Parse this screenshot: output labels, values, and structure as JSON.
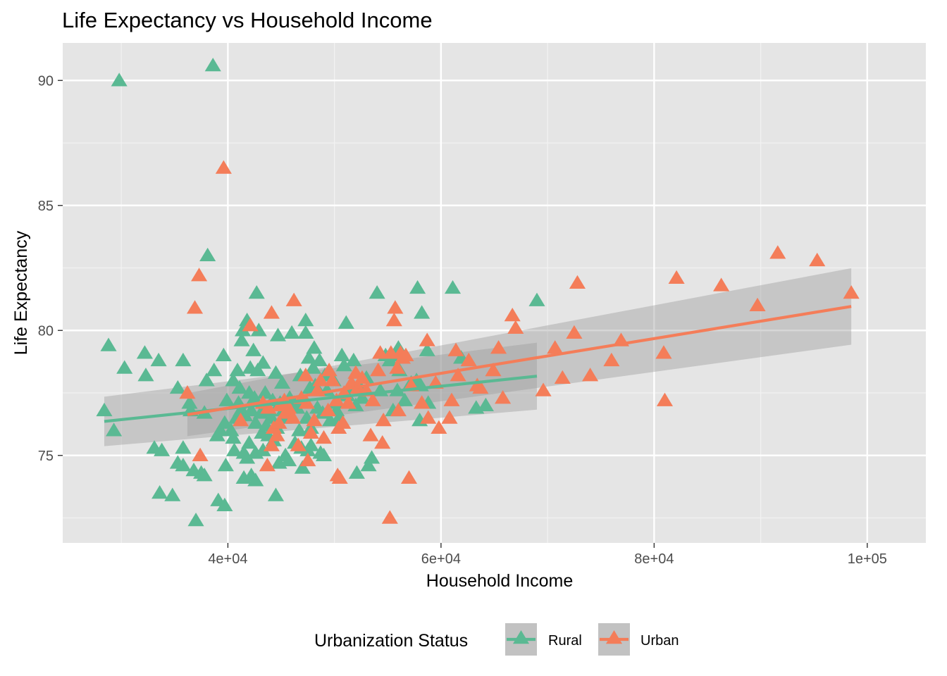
{
  "chart_data": {
    "type": "scatter",
    "title": "Life Expectancy vs Household Income",
    "xlabel": "Household Income",
    "ylabel": "Life Expectancy",
    "xlim": [
      24500,
      105500
    ],
    "ylim": [
      71.5,
      91.5
    ],
    "x_ticks": [
      {
        "value": 40000,
        "label": "4e+04"
      },
      {
        "value": 60000,
        "label": "6e+04"
      },
      {
        "value": 80000,
        "label": "8e+04"
      },
      {
        "value": 100000,
        "label": "1e+05"
      }
    ],
    "x_minor": [
      30000,
      50000,
      70000,
      90000
    ],
    "y_ticks": [
      {
        "value": 75,
        "label": "75"
      },
      {
        "value": 80,
        "label": "80"
      },
      {
        "value": 85,
        "label": "85"
      },
      {
        "value": 90,
        "label": "90"
      }
    ],
    "y_minor": [
      72.5,
      77.5,
      82.5,
      87.5
    ],
    "grid": true,
    "panel_color": "#e5e5e5",
    "legend": {
      "title": "Urbanization Status",
      "position": "bottom"
    },
    "series": [
      {
        "name": "Rural",
        "color": "#5ab993",
        "marker": "triangle",
        "points": [
          [
            28400,
            76.8
          ],
          [
            28800,
            79.4
          ],
          [
            29300,
            76.0
          ],
          [
            29800,
            90.0
          ],
          [
            30300,
            78.5
          ],
          [
            32200,
            79.1
          ],
          [
            32300,
            78.2
          ],
          [
            33100,
            75.3
          ],
          [
            33500,
            78.8
          ],
          [
            33600,
            73.5
          ],
          [
            33800,
            75.2
          ],
          [
            34800,
            73.4
          ],
          [
            35300,
            77.7
          ],
          [
            35300,
            74.7
          ],
          [
            35800,
            78.8
          ],
          [
            35800,
            75.3
          ],
          [
            35800,
            74.6
          ],
          [
            36400,
            77.1
          ],
          [
            36500,
            76.8
          ],
          [
            36800,
            74.4
          ],
          [
            37000,
            72.4
          ],
          [
            37500,
            74.3
          ],
          [
            37800,
            74.2
          ],
          [
            37800,
            76.7
          ],
          [
            38000,
            78.0
          ],
          [
            38100,
            83.0
          ],
          [
            38600,
            90.6
          ],
          [
            38700,
            78.4
          ],
          [
            39000,
            75.8
          ],
          [
            39100,
            73.2
          ],
          [
            39300,
            76.0
          ],
          [
            39600,
            79.0
          ],
          [
            39700,
            76.3
          ],
          [
            39700,
            73.0
          ],
          [
            39800,
            74.6
          ],
          [
            39900,
            77.2
          ],
          [
            40300,
            76.0
          ],
          [
            40500,
            78.0
          ],
          [
            40500,
            75.7
          ],
          [
            40600,
            75.2
          ],
          [
            40800,
            76.5
          ],
          [
            40900,
            78.4
          ],
          [
            41000,
            77.1
          ],
          [
            41100,
            77.7
          ],
          [
            41200,
            76.8
          ],
          [
            41300,
            79.6
          ],
          [
            41400,
            80.0
          ],
          [
            41500,
            75.1
          ],
          [
            41500,
            74.1
          ],
          [
            41600,
            76.6
          ],
          [
            41800,
            80.4
          ],
          [
            41800,
            74.9
          ],
          [
            42000,
            77.5
          ],
          [
            42000,
            75.5
          ],
          [
            42100,
            78.5
          ],
          [
            42200,
            74.2
          ],
          [
            42200,
            76.8
          ],
          [
            42400,
            79.2
          ],
          [
            42500,
            77.3
          ],
          [
            42600,
            76.3
          ],
          [
            42600,
            75.1
          ],
          [
            42600,
            74.0
          ],
          [
            42700,
            81.5
          ],
          [
            42800,
            78.4
          ],
          [
            42900,
            80.0
          ],
          [
            43100,
            76.7
          ],
          [
            43200,
            75.9
          ],
          [
            43300,
            78.7
          ],
          [
            43300,
            75.2
          ],
          [
            43500,
            77.5
          ],
          [
            43600,
            76.2
          ],
          [
            43800,
            75.8
          ],
          [
            43900,
            76.8
          ],
          [
            44100,
            76.5
          ],
          [
            44200,
            77.2
          ],
          [
            44300,
            75.6
          ],
          [
            44500,
            78.3
          ],
          [
            44500,
            73.4
          ],
          [
            44600,
            76.1
          ],
          [
            44700,
            79.8
          ],
          [
            44800,
            74.7
          ],
          [
            44900,
            77.1
          ],
          [
            45100,
            77.9
          ],
          [
            45200,
            76.8
          ],
          [
            45300,
            76.5
          ],
          [
            45400,
            75.0
          ],
          [
            45600,
            76.6
          ],
          [
            45700,
            74.8
          ],
          [
            45800,
            77.3
          ],
          [
            46000,
            79.9
          ],
          [
            46200,
            77.1
          ],
          [
            46300,
            75.5
          ],
          [
            46500,
            76.9
          ],
          [
            46700,
            76.0
          ],
          [
            46800,
            78.2
          ],
          [
            46900,
            75.3
          ],
          [
            47000,
            74.5
          ],
          [
            47200,
            77.1
          ],
          [
            47300,
            80.4
          ],
          [
            47300,
            79.9
          ],
          [
            47400,
            76.5
          ],
          [
            47500,
            75.2
          ],
          [
            47600,
            78.9
          ],
          [
            47700,
            77.7
          ],
          [
            47800,
            76.1
          ],
          [
            47800,
            75.4
          ],
          [
            48000,
            78.5
          ],
          [
            48100,
            79.3
          ],
          [
            48200,
            77.8
          ],
          [
            48400,
            76.9
          ],
          [
            48600,
            78.8
          ],
          [
            48700,
            75.1
          ],
          [
            48900,
            76.7
          ],
          [
            49000,
            75.0
          ],
          [
            49100,
            78.2
          ],
          [
            49300,
            77.6
          ],
          [
            49600,
            76.4
          ],
          [
            49900,
            78.0
          ],
          [
            50100,
            77.1
          ],
          [
            50200,
            76.8
          ],
          [
            50400,
            76.5
          ],
          [
            50700,
            79.0
          ],
          [
            50900,
            78.6
          ],
          [
            51100,
            80.3
          ],
          [
            51200,
            77.4
          ],
          [
            51500,
            77.7
          ],
          [
            51800,
            78.8
          ],
          [
            52000,
            77.0
          ],
          [
            52100,
            74.3
          ],
          [
            52300,
            77.8
          ],
          [
            52600,
            77.3
          ],
          [
            53000,
            78.1
          ],
          [
            53200,
            74.6
          ],
          [
            53500,
            74.9
          ],
          [
            54000,
            81.5
          ],
          [
            54300,
            77.6
          ],
          [
            54800,
            79.0
          ],
          [
            55200,
            78.8
          ],
          [
            55500,
            76.8
          ],
          [
            55800,
            79.0
          ],
          [
            55900,
            77.6
          ],
          [
            56000,
            79.3
          ],
          [
            56100,
            78.4
          ],
          [
            56600,
            77.2
          ],
          [
            57200,
            77.9
          ],
          [
            57700,
            78.0
          ],
          [
            57800,
            81.7
          ],
          [
            58000,
            76.4
          ],
          [
            58100,
            77.8
          ],
          [
            58200,
            80.7
          ],
          [
            58700,
            79.2
          ],
          [
            58800,
            77.1
          ],
          [
            61100,
            81.7
          ],
          [
            61900,
            78.9
          ],
          [
            63300,
            76.9
          ],
          [
            64200,
            77.0
          ],
          [
            69000,
            81.2
          ]
        ]
      },
      {
        "name": "Urban",
        "color": "#f47d59",
        "marker": "triangle",
        "points": [
          [
            36200,
            77.5
          ],
          [
            36900,
            80.9
          ],
          [
            37300,
            82.2
          ],
          [
            37400,
            75.0
          ],
          [
            39600,
            86.5
          ],
          [
            41200,
            76.4
          ],
          [
            42100,
            80.2
          ],
          [
            43300,
            77.1
          ],
          [
            43700,
            74.6
          ],
          [
            43800,
            76.9
          ],
          [
            44100,
            75.4
          ],
          [
            44100,
            80.7
          ],
          [
            44300,
            76.1
          ],
          [
            44600,
            75.8
          ],
          [
            44800,
            76.3
          ],
          [
            44900,
            77.0
          ],
          [
            45300,
            77.2
          ],
          [
            45400,
            76.7
          ],
          [
            45700,
            76.9
          ],
          [
            46100,
            76.5
          ],
          [
            46200,
            81.2
          ],
          [
            46600,
            75.4
          ],
          [
            46900,
            77.3
          ],
          [
            47300,
            78.2
          ],
          [
            47400,
            77.1
          ],
          [
            47500,
            74.8
          ],
          [
            47800,
            75.9
          ],
          [
            48100,
            76.4
          ],
          [
            48400,
            77.6
          ],
          [
            48700,
            78.0
          ],
          [
            49000,
            75.7
          ],
          [
            49400,
            76.8
          ],
          [
            49500,
            78.4
          ],
          [
            49800,
            78.0
          ],
          [
            50200,
            77.2
          ],
          [
            50300,
            74.2
          ],
          [
            50400,
            76.1
          ],
          [
            50500,
            74.1
          ],
          [
            50800,
            76.3
          ],
          [
            50900,
            77.5
          ],
          [
            51300,
            77.1
          ],
          [
            51600,
            77.9
          ],
          [
            52000,
            78.3
          ],
          [
            52200,
            77.7
          ],
          [
            52600,
            78.1
          ],
          [
            53000,
            77.6
          ],
          [
            53400,
            75.8
          ],
          [
            53600,
            77.2
          ],
          [
            54100,
            78.4
          ],
          [
            54300,
            79.1
          ],
          [
            54500,
            75.5
          ],
          [
            54600,
            76.4
          ],
          [
            55200,
            72.5
          ],
          [
            55300,
            79.1
          ],
          [
            55600,
            80.4
          ],
          [
            55700,
            80.9
          ],
          [
            55900,
            78.5
          ],
          [
            56000,
            76.8
          ],
          [
            56200,
            79.1
          ],
          [
            56400,
            78.9
          ],
          [
            56700,
            79.0
          ],
          [
            57000,
            74.1
          ],
          [
            57200,
            77.8
          ],
          [
            58200,
            77.1
          ],
          [
            58700,
            79.6
          ],
          [
            58800,
            76.5
          ],
          [
            59500,
            77.9
          ],
          [
            59800,
            76.1
          ],
          [
            60800,
            76.5
          ],
          [
            61000,
            77.2
          ],
          [
            61400,
            79.2
          ],
          [
            61600,
            78.2
          ],
          [
            62600,
            78.8
          ],
          [
            63400,
            77.8
          ],
          [
            63700,
            77.7
          ],
          [
            64900,
            78.4
          ],
          [
            65400,
            79.3
          ],
          [
            65800,
            77.3
          ],
          [
            66700,
            80.6
          ],
          [
            67000,
            80.1
          ],
          [
            69600,
            77.6
          ],
          [
            70700,
            79.3
          ],
          [
            71400,
            78.1
          ],
          [
            72500,
            79.9
          ],
          [
            72800,
            81.9
          ],
          [
            74000,
            78.2
          ],
          [
            76000,
            78.8
          ],
          [
            76900,
            79.6
          ],
          [
            80900,
            79.1
          ],
          [
            81000,
            77.2
          ],
          [
            82100,
            82.1
          ],
          [
            86300,
            81.8
          ],
          [
            89700,
            81.0
          ],
          [
            91600,
            83.1
          ],
          [
            95300,
            82.8
          ],
          [
            98500,
            81.5
          ]
        ]
      }
    ],
    "fits": [
      {
        "name": "Rural",
        "x0": 28400,
        "x1": 69000,
        "y0": 76.36,
        "y1": 78.17,
        "upper0": 77.35,
        "upper1": 79.51,
        "lower0": 75.37,
        "lower1": 76.83
      },
      {
        "name": "Urban",
        "x0": 36200,
        "x1": 98500,
        "y0": 76.63,
        "y1": 80.96,
        "upper0": 77.49,
        "upper1": 82.49,
        "lower0": 75.77,
        "lower1": 79.43
      }
    ]
  }
}
